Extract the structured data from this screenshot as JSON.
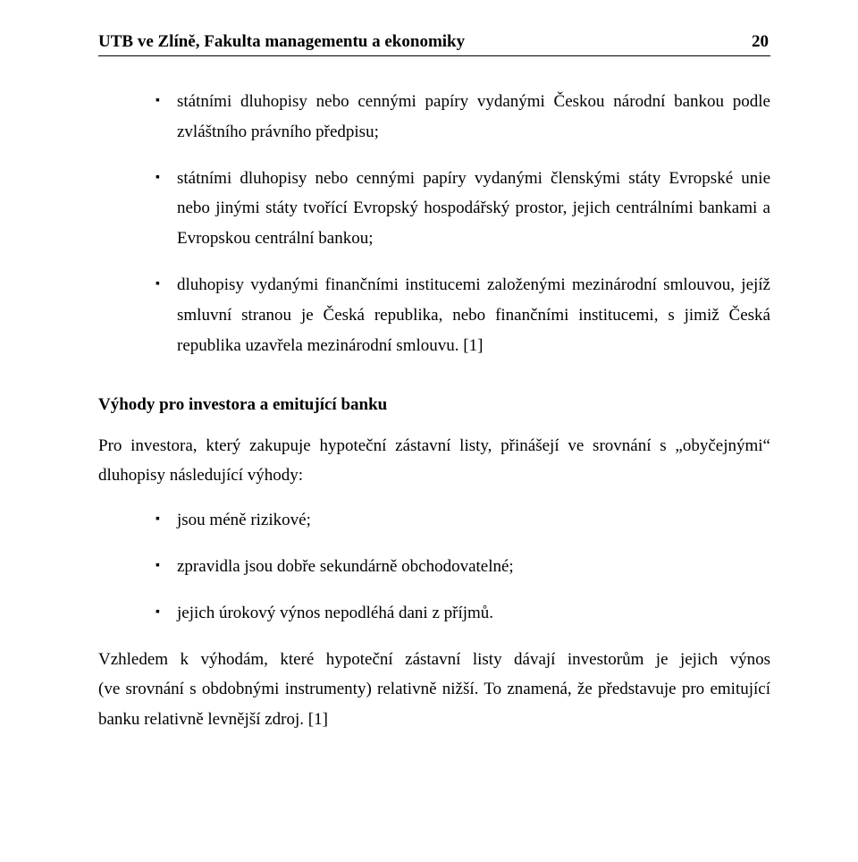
{
  "header": {
    "title": "UTB ve Zlíně, Fakulta managementu a ekonomiky",
    "page_number": "20"
  },
  "top_list": [
    "státními dluhopisy nebo cennými papíry vydanými Českou národní bankou podle zvláštního právního předpisu;",
    "státními dluhopisy nebo cennými papíry vydanými členskými státy Evropské unie nebo jinými státy tvořící Evropský hospodářský prostor, jejich centrálními bankami a Evropskou centrální bankou;",
    "dluhopisy vydanými finančními institucemi založenými mezinárodní smlouvou, jejíž smluvní stranou je Česká republika, nebo finančními institucemi, s jimiž Česká republika uzavřela mezinárodní smlouvu. [1]"
  ],
  "section_title": "Výhody pro investora a emitující banku",
  "para_intro": "Pro investora, který zakupuje hypoteční zástavní listy, přinášejí ve srovnání s „obyčejnými“ dluhopisy následující výhody:",
  "advantages_list": [
    "jsou méně rizikové;",
    "zpravidla jsou dobře sekundárně obchodovatelné;",
    "jejich úrokový výnos nepodléhá dani z příjmů."
  ],
  "para_outro": "Vzhledem k výhodám, které hypoteční zástavní listy dávají investorům je jejich výnos (ve srovnání s obdobnými instrumenty) relativně nižší. To znamená, že představuje pro emitující banku relativně levnější zdroj. [1]"
}
